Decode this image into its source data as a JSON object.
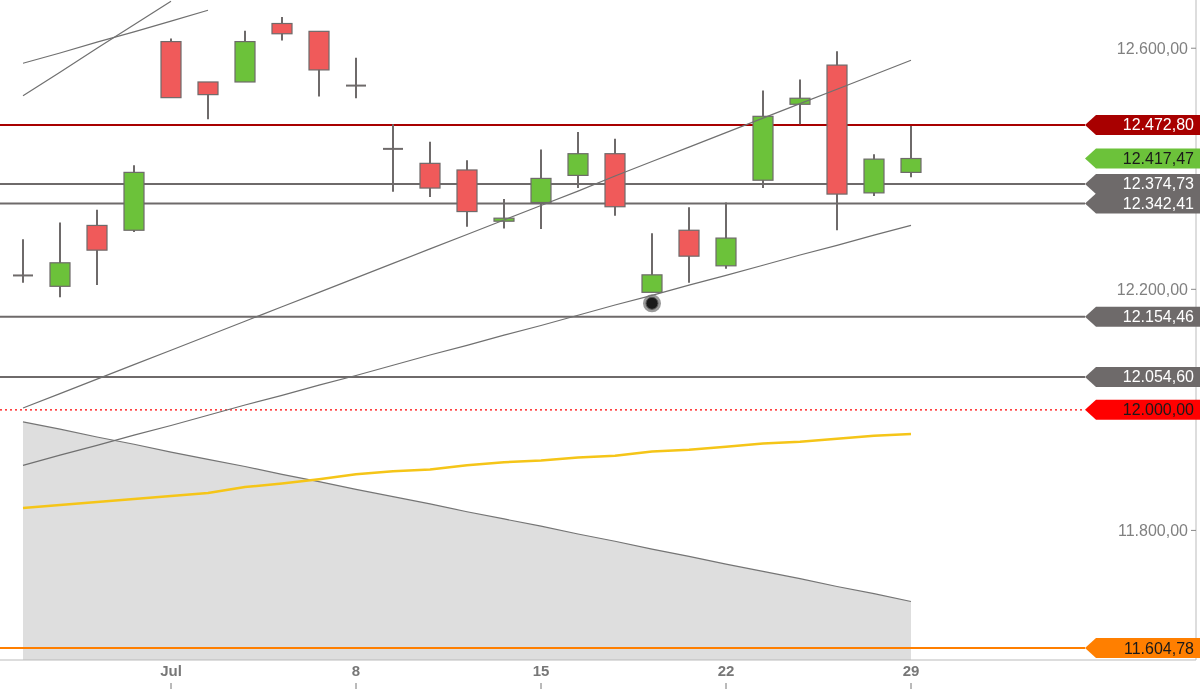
{
  "chart_data": {
    "type": "candlestick",
    "categories": [
      null,
      null,
      null,
      null,
      "Jul",
      null,
      null,
      null,
      null,
      "8",
      null,
      null,
      null,
      null,
      "15",
      null,
      null,
      null,
      null,
      "22",
      null,
      null,
      null,
      null,
      "29"
    ],
    "ohlc": [
      [
        12223,
        12283,
        12211,
        12223
      ],
      [
        12205,
        12311,
        12187,
        12244
      ],
      [
        12306,
        12332,
        12207,
        12265
      ],
      [
        12298,
        12406,
        12295,
        12394
      ],
      [
        12611,
        12616,
        12518,
        12518
      ],
      [
        12544,
        12544,
        12482,
        12523
      ],
      [
        12544,
        12629,
        12544,
        12611
      ],
      [
        12641,
        12652,
        12613,
        12624
      ],
      [
        12628,
        12628,
        12520,
        12564
      ],
      [
        12538,
        12584,
        12517,
        12538
      ],
      [
        12433,
        12474,
        12362,
        12433
      ],
      [
        12409,
        12445,
        12353,
        12368
      ],
      [
        12398,
        12414,
        12304,
        12329
      ],
      [
        12313,
        12350,
        12301,
        12318
      ],
      [
        12344,
        12432,
        12300,
        12384
      ],
      [
        12389,
        12461,
        12368,
        12425
      ],
      [
        12425,
        12450,
        12322,
        12337
      ],
      [
        12195,
        12293,
        12195,
        12224
      ],
      [
        12298,
        12336,
        12211,
        12255
      ],
      [
        12239,
        12344,
        12234,
        12285
      ],
      [
        12381,
        12530,
        12368,
        12487
      ],
      [
        12507,
        12548,
        12474,
        12517
      ],
      [
        12572,
        12595,
        12298,
        12358
      ],
      [
        12360,
        12424,
        12355,
        12416
      ],
      [
        12394,
        12471,
        12386,
        12417
      ]
    ],
    "colors": [
      "#6e6a6a",
      "#6cc23a",
      "#f05a5a",
      "#6cc23a",
      "#f05a5a",
      "#f05a5a",
      "#6cc23a",
      "#f05a5a",
      "#f05a5a",
      "#6e6a6a",
      "#6e6a6a",
      "#f05a5a",
      "#f05a5a",
      "#6cc23a",
      "#6cc23a",
      "#6cc23a",
      "#f05a5a",
      "#6cc23a",
      "#f05a5a",
      "#6cc23a",
      "#6cc23a",
      "#6cc23a",
      "#f05a5a",
      "#6cc23a",
      "#6cc23a"
    ],
    "series": [
      {
        "type": "area",
        "color": "#dedede",
        "values": [
          11980,
          11968,
          11955,
          11943,
          11930,
          11918,
          11906,
          11893,
          11881,
          11868,
          11856,
          11844,
          11831,
          11819,
          11807,
          11794,
          11782,
          11769,
          11757,
          11744,
          11732,
          11720,
          11707,
          11695,
          11682
        ]
      },
      {
        "type": "line",
        "color": "#707070",
        "values": [
          12003,
          12027,
          12051,
          12075,
          12099,
          12123,
          12147,
          12171,
          12195,
          12219,
          12243,
          12267,
          12291,
          12315,
          12339,
          12363,
          12388,
          12412,
          12436,
          12460,
          12484,
          12508,
          12532,
          12556,
          12580
        ]
      },
      {
        "type": "line",
        "color": "#707070",
        "values": [
          11908,
          11925,
          11941,
          11958,
          11974,
          11991,
          12008,
          12024,
          12041,
          12057,
          12074,
          12091,
          12107,
          12124,
          12140,
          12157,
          12174,
          12190,
          12207,
          12223,
          12240,
          12257,
          12273,
          12290,
          12306
        ]
      },
      {
        "type": "line",
        "color": "#707070",
        "values": [
          12575,
          12592,
          12610,
          12627,
          12645,
          12663,
          null,
          null,
          null,
          null,
          null,
          null,
          null,
          null,
          null,
          null,
          null,
          null,
          null,
          null,
          null,
          null,
          null,
          null,
          null
        ]
      },
      {
        "type": "line",
        "color": "#707070",
        "values": [
          12521,
          12560,
          12600,
          12639,
          12678,
          null,
          null,
          null,
          null,
          null,
          null,
          null,
          null,
          null,
          null,
          null,
          null,
          null,
          null,
          null,
          null,
          null,
          null,
          null,
          null
        ]
      },
      {
        "type": "line",
        "color": "#f5c518",
        "values": [
          11837,
          11842,
          11847,
          11852,
          11857,
          11862,
          11872,
          11878,
          11885,
          11893,
          11898,
          11901,
          11908,
          11913,
          11916,
          11921,
          11924,
          11931,
          11934,
          11939,
          11944,
          11947,
          11952,
          11957,
          11960
        ]
      }
    ],
    "ylim": [
      11585,
      12680
    ],
    "yticks": [
      {
        "value": 11800,
        "label": "11.800,00"
      },
      {
        "value": 12200,
        "label": "12.200,00"
      },
      {
        "value": 12600,
        "label": "12.600,00"
      }
    ],
    "ref_lines": [
      {
        "axis": "y",
        "value": 12472.8,
        "label": "12.472,80",
        "color": "#a80000"
      },
      {
        "axis": "y",
        "value": 12374.73,
        "label": "12.374,73",
        "color": "#6e6a6a"
      },
      {
        "axis": "y",
        "value": 12342.41,
        "label": "12.342,41",
        "color": "#6e6a6a"
      },
      {
        "axis": "y",
        "value": 12154.46,
        "label": "12.154,46",
        "color": "#6e6a6a"
      },
      {
        "axis": "y",
        "value": 12054.6,
        "label": "12.054,60",
        "color": "#6e6a6a"
      },
      {
        "axis": "y",
        "value": 12000.0,
        "label": "12.000,00",
        "color": "#ff0000",
        "line_style": "dotted"
      },
      {
        "axis": "y",
        "value": 11604.78,
        "label": "11.604,78",
        "color": "#ff7f00"
      }
    ],
    "annotations": [
      "12.417,47"
    ]
  }
}
